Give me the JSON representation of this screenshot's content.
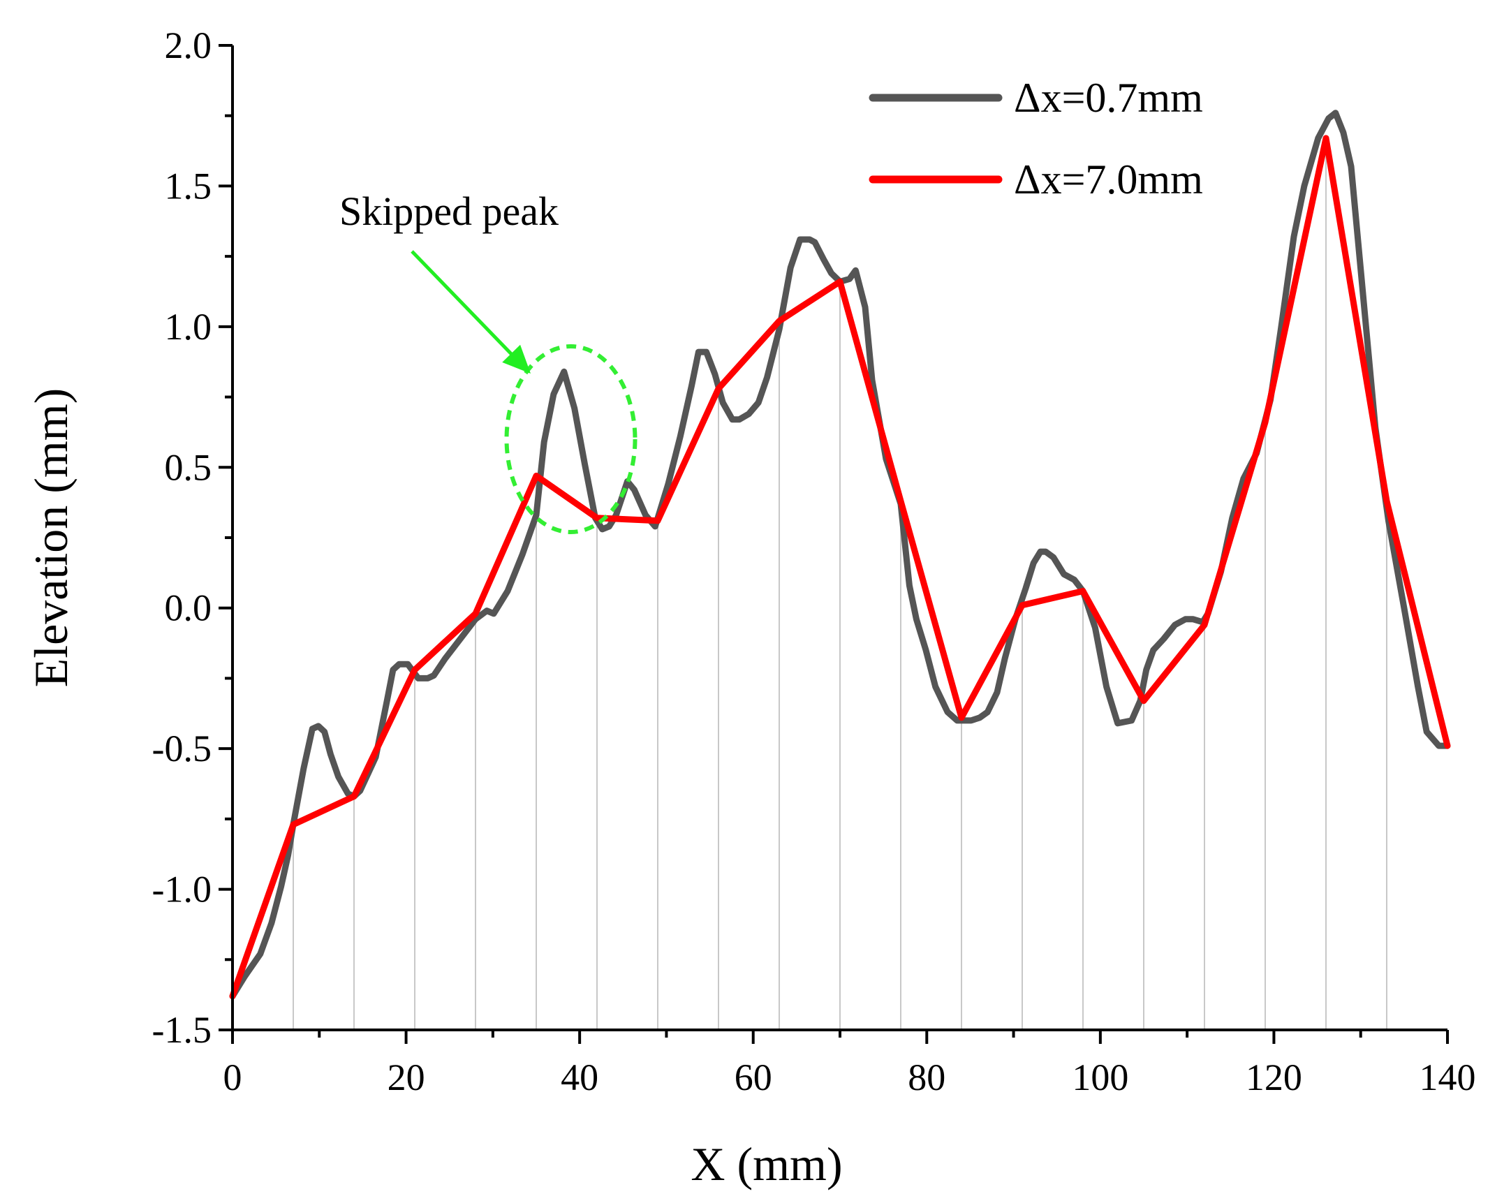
{
  "chart_data": {
    "type": "line",
    "title": "",
    "xlabel": "X (mm)",
    "ylabel": "Elevation (mm)",
    "xlim": [
      0,
      140
    ],
    "ylim": [
      -1.5,
      2.0
    ],
    "xticks": [
      0,
      20,
      40,
      60,
      80,
      100,
      120,
      140
    ],
    "xtick_labels": [
      "0",
      "20",
      "40",
      "60",
      "80",
      "100",
      "120",
      "140"
    ],
    "yticks": [
      -1.5,
      -1.0,
      -0.5,
      0.0,
      0.5,
      1.0,
      1.5,
      2.0
    ],
    "ytick_labels": [
      "-1.5",
      "-1.0",
      "-0.5",
      "0.0",
      "0.5",
      "1.0",
      "1.5",
      "2.0"
    ],
    "grid": "vertical lines at coarse sample points (every 7.0 mm)",
    "legend_position": "top-right",
    "series": [
      {
        "name": "Δx=0.7mm",
        "color": "#555555",
        "x": [
          0,
          1.4,
          3.2,
          4.5,
          5.6,
          6.4,
          7,
          8.2,
          9.2,
          9.9,
          10.6,
          11.3,
          12.2,
          13.3,
          14,
          14.7,
          16.5,
          17.8,
          18.5,
          19.2,
          20.2,
          21.4,
          22.5,
          23.2,
          24.5,
          26,
          28,
          29.3,
          30.1,
          31.7,
          33.4,
          35,
          35.9,
          37,
          38.2,
          39.4,
          40.6,
          41.8,
          42.6,
          43.4,
          44.2,
          45.5,
          46.3,
          47.6,
          48.7,
          50.2,
          51.6,
          52.9,
          53.7,
          54.6,
          55.6,
          56.5,
          57.6,
          58.4,
          59.5,
          60.6,
          61.6,
          63,
          64.3,
          65.4,
          66.5,
          67.1,
          68.1,
          69,
          70,
          71.1,
          71.8,
          72.9,
          73.7,
          75.3,
          77,
          78,
          78.8,
          79.9,
          81,
          82.4,
          83.5,
          84.5,
          85.1,
          86.1,
          87,
          88.1,
          89,
          90.2,
          91.4,
          92.3,
          93.1,
          93.7,
          94.6,
          95.8,
          97,
          98,
          99.4,
          100.7,
          102,
          103.6,
          104.6,
          105.3,
          106.1,
          107.3,
          108.6,
          109.8,
          110.7,
          111.8,
          112.4,
          113.9,
          115.2,
          116.5,
          118,
          119.6,
          120.8,
          122.3,
          123.5,
          125.1,
          126.3,
          127.1,
          128,
          128.9,
          130.1,
          131.7,
          133.2,
          135,
          136.6,
          137.6,
          139,
          140
        ],
        "values": [
          -1.38,
          -1.31,
          -1.23,
          -1.12,
          -0.99,
          -0.88,
          -0.77,
          -0.57,
          -0.43,
          -0.42,
          -0.44,
          -0.52,
          -0.6,
          -0.66,
          -0.67,
          -0.65,
          -0.53,
          -0.33,
          -0.22,
          -0.2,
          -0.2,
          -0.25,
          -0.25,
          -0.24,
          -0.18,
          -0.12,
          -0.04,
          -0.01,
          -0.02,
          0.06,
          0.19,
          0.33,
          0.59,
          0.76,
          0.84,
          0.71,
          0.51,
          0.32,
          0.28,
          0.29,
          0.33,
          0.45,
          0.42,
          0.33,
          0.29,
          0.44,
          0.61,
          0.79,
          0.91,
          0.91,
          0.83,
          0.73,
          0.67,
          0.67,
          0.69,
          0.73,
          0.82,
          0.99,
          1.21,
          1.31,
          1.31,
          1.3,
          1.24,
          1.19,
          1.16,
          1.17,
          1.2,
          1.07,
          0.81,
          0.53,
          0.37,
          0.08,
          -0.04,
          -0.15,
          -0.28,
          -0.37,
          -0.4,
          -0.4,
          -0.4,
          -0.39,
          -0.37,
          -0.3,
          -0.18,
          -0.04,
          0.07,
          0.16,
          0.2,
          0.2,
          0.18,
          0.12,
          0.1,
          0.06,
          -0.07,
          -0.28,
          -0.41,
          -0.4,
          -0.33,
          -0.22,
          -0.15,
          -0.11,
          -0.06,
          -0.04,
          -0.04,
          -0.05,
          -0.02,
          0.13,
          0.32,
          0.46,
          0.55,
          0.74,
          0.99,
          1.32,
          1.5,
          1.67,
          1.74,
          1.76,
          1.69,
          1.57,
          1.17,
          0.64,
          0.31,
          0.0,
          -0.28,
          -0.44,
          -0.49,
          -0.49
        ]
      },
      {
        "name": "Δx=7.0mm",
        "color": "#ff0000",
        "x": [
          0,
          7,
          14,
          21,
          28,
          35,
          42,
          49,
          56,
          63,
          70,
          77,
          84,
          91,
          98,
          105,
          112,
          119,
          126,
          133,
          140
        ],
        "values": [
          -1.38,
          -0.77,
          -0.67,
          -0.22,
          -0.02,
          0.47,
          0.32,
          0.31,
          0.78,
          1.02,
          1.16,
          0.38,
          -0.39,
          0.01,
          0.06,
          -0.33,
          -0.06,
          0.66,
          1.67,
          0.38,
          -0.49
        ]
      }
    ],
    "annotations": [
      {
        "text": "Skipped peak",
        "target_x": 38.5,
        "target_y": 0.6
      }
    ]
  }
}
